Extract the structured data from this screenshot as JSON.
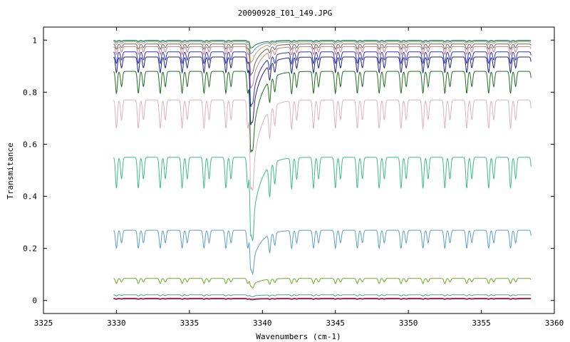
{
  "chart_data": {
    "type": "line",
    "title": "20090928_I01_149.JPG",
    "xlabel": "Wavenumbers (cm-1)",
    "ylabel": "Transmitance",
    "xlim": [
      3325,
      3360
    ],
    "ylim": [
      -0.05,
      1.05
    ],
    "xticks": [
      3325,
      3330,
      3335,
      3340,
      3345,
      3350,
      3355,
      3360
    ],
    "yticks": [
      0,
      0.2,
      0.4,
      0.6,
      0.8,
      1
    ],
    "ytick_labels": [
      "0",
      "0.2",
      "0.4",
      "0.6",
      "0.8",
      "1"
    ],
    "grid": false,
    "legend": "none",
    "x_range_of_data": [
      3329.8,
      3358.4
    ],
    "main_dip_at": 3339.2,
    "series": [
      {
        "color": "#1a7a3a",
        "baseline": 0.999,
        "dip": 0.004,
        "main_dip": 0.03
      },
      {
        "color": "#5aa0c8",
        "baseline": 0.997,
        "dip": 0.006,
        "main_dip": 0.05
      },
      {
        "color": "#bfa060",
        "baseline": 0.993,
        "dip": 0.01,
        "main_dip": 0.08
      },
      {
        "color": "#666666",
        "baseline": 0.985,
        "dip": 0.02,
        "main_dip": 0.12
      },
      {
        "color": "#c08080",
        "baseline": 0.975,
        "dip": 0.03,
        "main_dip": 0.16
      },
      {
        "color": "#3030c0",
        "baseline": 0.955,
        "dip": 0.045,
        "main_dip": 0.21
      },
      {
        "color": "#202080",
        "baseline": 0.935,
        "dip": 0.06,
        "main_dip": 0.26
      },
      {
        "color": "#1f6f1f",
        "baseline": 0.88,
        "dip": 0.085,
        "main_dip": 0.31
      },
      {
        "color": "#e0b0c0",
        "baseline": 0.77,
        "dip": 0.11,
        "main_dip": 0.34
      },
      {
        "color": "#3cbc84",
        "baseline": 0.55,
        "dip": 0.12,
        "main_dip": 0.3
      },
      {
        "color": "#5a9ec8",
        "baseline": 0.27,
        "dip": 0.07,
        "main_dip": 0.15
      },
      {
        "color": "#6aa820",
        "baseline": 0.085,
        "dip": 0.02,
        "main_dip": 0.03
      },
      {
        "color": "#40a080",
        "baseline": 0.022,
        "dip": 0.005,
        "main_dip": 0.006
      },
      {
        "color": "#cc2266",
        "baseline": 0.009,
        "dip": 0.002,
        "main_dip": 0.003
      },
      {
        "color": "#602040",
        "baseline": 0.006,
        "dip": 0.002,
        "main_dip": 0.003
      }
    ]
  }
}
